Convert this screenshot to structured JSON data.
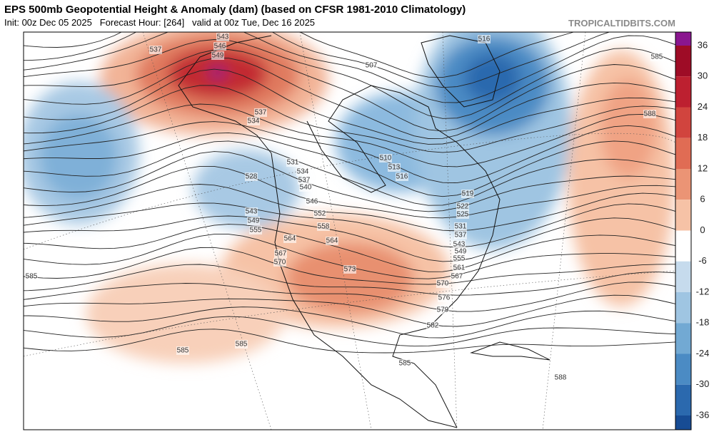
{
  "header": {
    "title": "EPS 500mb Geopotential Height & Anomaly (dam) (based on CFSR 1981-2010 Climatology)",
    "subtitle": "Init: 00z Dec 05 2025   Forecast Hour: [264]   valid at 00z Tue, Dec 16 2025",
    "watermark": "TROPICALTIDBITS.COM"
  },
  "colorbar": {
    "ticks": [
      36,
      30,
      24,
      18,
      12,
      6,
      0,
      -6,
      -12,
      -18,
      -24,
      -30,
      -36
    ],
    "colors": [
      "#8a168f",
      "#9e0c26",
      "#bd2030",
      "#d1443e",
      "#e06c54",
      "#eb9475",
      "#f6c2a6",
      "#ffffff",
      "#c6dbed",
      "#9fc5e2",
      "#72a9d3",
      "#4b8bc4",
      "#2b69ae",
      "#174c94",
      "#0d2c6b"
    ]
  },
  "contour_labels": [
    537,
    543,
    546,
    549,
    537,
    534,
    528,
    531,
    534,
    537,
    540,
    543,
    549,
    555,
    546,
    552,
    558,
    564,
    564,
    567,
    570,
    573,
    585,
    585,
    585,
    585,
    588,
    588,
    585,
    516,
    507,
    510,
    513,
    516,
    519,
    522,
    525,
    531,
    537,
    543,
    549,
    555,
    561,
    567,
    570,
    576,
    579,
    582
  ]
}
